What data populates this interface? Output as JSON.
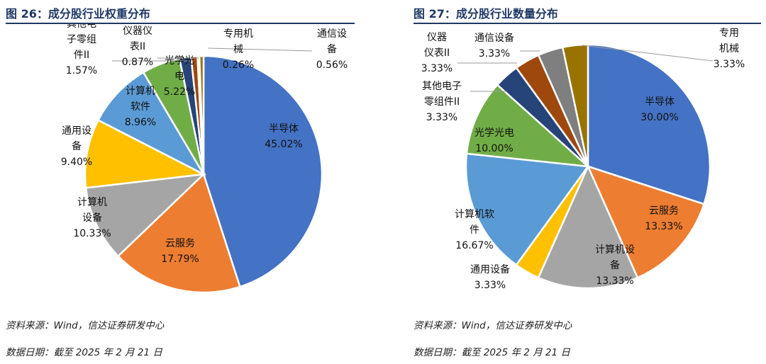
{
  "figures": [
    {
      "title": "图 26：成分股行业权重分布",
      "source": "资料来源：Wind，信达证券研发中心",
      "date": "数据日期：截至 2025 年 2 月 21 日"
    },
    {
      "title": "图 27：成分股行业数量分布",
      "source": "资料来源：Wind，信达证券研发中心",
      "date": "数据日期：截至 2025 年 2 月 21 日"
    }
  ],
  "chart_data": [
    {
      "type": "pie",
      "title": "图 26：成分股行业权重分布",
      "start": "12 o'clock, clockwise",
      "slices": [
        {
          "name": "半导体",
          "value": 45.02,
          "label": [
            "半导体",
            "45.02%"
          ],
          "color": "#4472c4"
        },
        {
          "name": "云服务",
          "value": 17.79,
          "label": [
            "云服务",
            "17.79%"
          ],
          "color": "#ed7d31"
        },
        {
          "name": "计算机设备",
          "value": 10.33,
          "label": [
            "计算机",
            "设备",
            "10.33%"
          ],
          "color": "#a5a5a5"
        },
        {
          "name": "通用设备",
          "value": 9.4,
          "label": [
            "通用设",
            "备",
            "9.40%"
          ],
          "color": "#ffc000"
        },
        {
          "name": "计算机软件",
          "value": 8.96,
          "label": [
            "计算机",
            "软件",
            "8.96%"
          ],
          "color": "#5b9bd5"
        },
        {
          "name": "光学光电",
          "value": 5.22,
          "label": [
            "光学光",
            "电",
            "5.22%"
          ],
          "color": "#70ad47"
        },
        {
          "name": "其他电子零组件II",
          "value": 1.57,
          "label": [
            "其他电",
            "子零组",
            "件II",
            "1.57%"
          ],
          "color": "#264478"
        },
        {
          "name": "仪器仪表II",
          "value": 0.87,
          "label": [
            "仪器仪",
            "表II",
            "0.87%"
          ],
          "color": "#9e480e"
        },
        {
          "name": "专用机械",
          "value": 0.26,
          "label": [
            "专用机",
            "械",
            "0.26%"
          ],
          "color": "#636363"
        },
        {
          "name": "通信设备",
          "value": 0.56,
          "label": [
            "通信设",
            "备",
            "0.56%"
          ],
          "color": "#997300"
        }
      ]
    },
    {
      "type": "pie",
      "title": "图 27：成分股行业数量分布",
      "start": "12 o'clock, clockwise",
      "slices": [
        {
          "name": "半导体",
          "value": 30.0,
          "label": [
            "半导体",
            "30.00%"
          ],
          "color": "#4472c4"
        },
        {
          "name": "云服务",
          "value": 13.33,
          "label": [
            "云服务",
            "13.33%"
          ],
          "color": "#ed7d31"
        },
        {
          "name": "计算机设备",
          "value": 13.33,
          "label": [
            "计算机设",
            "备",
            "13.33%"
          ],
          "color": "#a5a5a5"
        },
        {
          "name": "通用设备",
          "value": 3.33,
          "label": [
            "通用设备",
            "3.33%"
          ],
          "color": "#ffc000"
        },
        {
          "name": "计算机软件",
          "value": 16.67,
          "label": [
            "计算机软",
            "件",
            "16.67%"
          ],
          "color": "#5b9bd5"
        },
        {
          "name": "光学光电",
          "value": 10.0,
          "label": [
            "光学光电",
            "10.00%"
          ],
          "color": "#70ad47"
        },
        {
          "name": "其他电子零组件II",
          "value": 3.33,
          "label": [
            "其他电子",
            "零组件II",
            "3.33%"
          ],
          "color": "#264478"
        },
        {
          "name": "仪器仪表II",
          "value": 3.33,
          "label": [
            "仪器",
            "仪表II",
            "3.33%"
          ],
          "color": "#9e480e"
        },
        {
          "name": "通信设备",
          "value": 3.33,
          "label": [
            "通信设备",
            "3.33%"
          ],
          "color": "#7f7f7f"
        },
        {
          "name": "专用机械",
          "value": 3.33,
          "label": [
            "专用",
            "机械",
            "3.33%"
          ],
          "color": "#997300"
        }
      ]
    }
  ]
}
